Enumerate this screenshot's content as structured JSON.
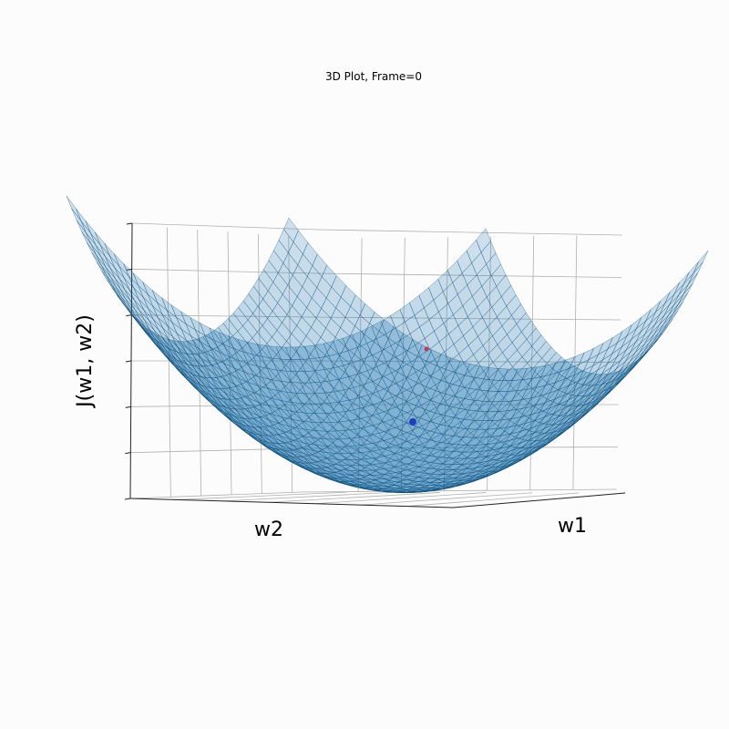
{
  "chart_data": {
    "type": "surface3d",
    "title": "3D Plot, Frame=0",
    "xlabel": "w1",
    "ylabel": "w2",
    "zlabel": "J(w1, w2)",
    "surface": {
      "function": "paraboloid",
      "color": "#1f77b4",
      "edge_color": "#0b4a73",
      "face_alpha": 0.35
    },
    "points": [
      {
        "name": "current-point",
        "color": "#1f3fbf"
      },
      {
        "name": "start-point",
        "color": "#c0395a"
      }
    ],
    "z_ticks": 6,
    "grid": true,
    "tick_labels_visible": false
  }
}
